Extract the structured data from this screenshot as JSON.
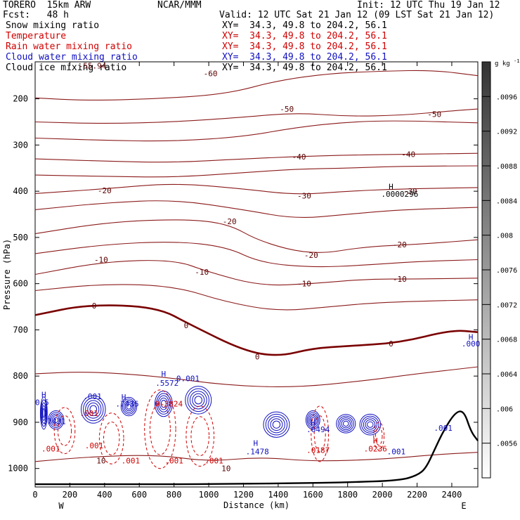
{
  "header": {
    "left_line1": "TORERO  15km ARW",
    "center_line1": "NCAR/MMM",
    "right_line1": "Init: 12 UTC Thu 19 Jan 12",
    "left_line2": "Fcst:   48 h",
    "right_line2": "Valid: 12 UTC Sat 21 Jan 12 (09 LST Sat 21 Jan 12)"
  },
  "fields": [
    {
      "name": "Snow mixing ratio",
      "xy": "XY=  34.3, 49.8 to 204.2, 56.1",
      "color": "#000000"
    },
    {
      "name": "Temperature",
      "xy": "XY=  34.3, 49.8 to 204.2, 56.1",
      "color": "#d00000"
    },
    {
      "name": "Rain water mixing ratio",
      "xy": "XY=  34.3, 49.8 to 204.2, 56.1",
      "color": "#d00000"
    },
    {
      "name": "Cloud water mixing ratio",
      "xy": "XY=  34.3, 49.8 to 204.2, 56.1",
      "color": "#1010c0"
    },
    {
      "name": "Cloud ice mixing ratio",
      "xy": "XY=  34.3, 49.8 to 204.2, 56.1",
      "color": "#000000"
    }
  ],
  "chart_data": {
    "type": "contour-cross-section",
    "xlabel": "Distance (km)",
    "ylabel": "Pressure (hPa)",
    "x_ticks": [
      "0",
      "200",
      "400",
      "600",
      "800",
      "1000",
      "1200",
      "1400",
      "1600",
      "1800",
      "2000",
      "2200",
      "2400"
    ],
    "y_ticks": [
      "200",
      "300",
      "400",
      "500",
      "600",
      "700",
      "800",
      "900",
      "1000"
    ],
    "xlim": [
      0,
      2550
    ],
    "ylim": [
      1040,
      120
    ],
    "endpoints": [
      "W",
      "E"
    ],
    "colorbar": {
      "unit": "g kg",
      "unit_exp": "-1",
      "labels": [
        ".0096",
        ".0092",
        ".0088",
        ".0084",
        ".008",
        ".0076",
        ".0072",
        ".0068",
        ".0064",
        ".006",
        ".0056"
      ]
    },
    "temperature_labels": [
      {
        "text": "-60",
        "x": 1010,
        "p": 145
      },
      {
        "text": "-50",
        "x": 1450,
        "p": 222
      },
      {
        "text": "-50",
        "x": 2300,
        "p": 233
      },
      {
        "text": "-40",
        "x": 1520,
        "p": 325
      },
      {
        "text": "-40",
        "x": 2150,
        "p": 320
      },
      {
        "text": "-30",
        "x": 1550,
        "p": 410
      },
      {
        "text": "-30",
        "x": 2160,
        "p": 400
      },
      {
        "text": "-20",
        "x": 400,
        "p": 398
      },
      {
        "text": "-20",
        "x": 1120,
        "p": 465
      },
      {
        "text": "-20",
        "x": 1590,
        "p": 538
      },
      {
        "text": "-20",
        "x": 2100,
        "p": 515
      },
      {
        "text": "-10",
        "x": 380,
        "p": 548
      },
      {
        "text": "-10",
        "x": 960,
        "p": 575
      },
      {
        "text": "-10",
        "x": 1550,
        "p": 600
      },
      {
        "text": "-10",
        "x": 2100,
        "p": 590
      },
      {
        "text": "0",
        "x": 340,
        "p": 648
      },
      {
        "text": "0",
        "x": 870,
        "p": 690
      },
      {
        "text": "0",
        "x": 1280,
        "p": 758
      },
      {
        "text": "0",
        "x": 2050,
        "p": 730
      },
      {
        "text": "10",
        "x": 380,
        "p": 983
      },
      {
        "text": "10",
        "x": 1100,
        "p": 1000
      },
      {
        "text": "-55.94",
        "x": 330,
        "p": 128
      }
    ],
    "mixing_labels": [
      {
        "text": "H",
        "x": 2050,
        "p": 390,
        "color": "#000000"
      },
      {
        "text": ".0000296",
        "x": 2100,
        "p": 406,
        "color": "#000000"
      },
      {
        "text": "H",
        "x": 50,
        "p": 840,
        "color": "#1010c0"
      },
      {
        "text": "0.5",
        "x": 40,
        "p": 857,
        "color": "#1010c0"
      },
      {
        "text": ".7431",
        "x": 110,
        "p": 898,
        "color": "#1010c0"
      },
      {
        "text": ".001",
        "x": 330,
        "p": 844,
        "color": "#1010c0"
      },
      {
        "text": ".001",
        "x": 310,
        "p": 880,
        "color": "#d00000"
      },
      {
        "text": "H",
        "x": 510,
        "p": 845,
        "color": "#1010c0"
      },
      {
        "text": ".7436",
        "x": 530,
        "p": 860,
        "color": "#1010c0"
      },
      {
        "text": "H",
        "x": 740,
        "p": 795,
        "color": "#1010c0"
      },
      {
        "text": ".5572",
        "x": 760,
        "p": 815,
        "color": "#1010c0"
      },
      {
        "text": "0.001",
        "x": 880,
        "p": 805,
        "color": "#1010c0"
      },
      {
        "text": "0.3824",
        "x": 770,
        "p": 860,
        "color": "#d00000"
      },
      {
        "text": ".001",
        "x": 90,
        "p": 957,
        "color": "#d00000"
      },
      {
        "text": ".001",
        "x": 340,
        "p": 950,
        "color": "#d00000"
      },
      {
        "text": ".001",
        "x": 550,
        "p": 983,
        "color": "#d00000"
      },
      {
        "text": ".001",
        "x": 800,
        "p": 983,
        "color": "#d00000"
      },
      {
        "text": ".001",
        "x": 1030,
        "p": 983,
        "color": "#d00000"
      },
      {
        "text": "H",
        "x": 1270,
        "p": 945,
        "color": "#1010c0"
      },
      {
        "text": ".1478",
        "x": 1280,
        "p": 963,
        "color": "#1010c0"
      },
      {
        "text": "H",
        "x": 1600,
        "p": 900,
        "color": "#1010c0"
      },
      {
        "text": ".6494",
        "x": 1630,
        "p": 915,
        "color": "#1010c0"
      },
      {
        "text": ".0187",
        "x": 1630,
        "p": 960,
        "color": "#d00000"
      },
      {
        "text": "H",
        "x": 1960,
        "p": 940,
        "color": "#d00000"
      },
      {
        "text": ".0236",
        "x": 1960,
        "p": 957,
        "color": "#d00000"
      },
      {
        "text": ".001",
        "x": 2080,
        "p": 963,
        "color": "#1010c0"
      },
      {
        "text": ".001",
        "x": 2350,
        "p": 912,
        "color": "#1010c0"
      },
      {
        "text": "H",
        "x": 2510,
        "p": 715,
        "color": "#1010c0"
      },
      {
        "text": ".000",
        "x": 2510,
        "p": 730,
        "color": "#1010c0"
      }
    ],
    "temperature_contours": [
      {
        "level": "-60",
        "points": [
          [
            0,
            198
          ],
          [
            300,
            204
          ],
          [
            700,
            200
          ],
          [
            1100,
            190
          ],
          [
            1400,
            160
          ],
          [
            1700,
            145
          ],
          [
            2000,
            140
          ],
          [
            2300,
            138
          ],
          [
            2550,
            150
          ]
        ]
      },
      {
        "level": "-50",
        "points": [
          [
            0,
            250
          ],
          [
            400,
            254
          ],
          [
            800,
            250
          ],
          [
            1200,
            240
          ],
          [
            1500,
            230
          ],
          [
            1800,
            238
          ],
          [
            2100,
            236
          ],
          [
            2400,
            226
          ],
          [
            2550,
            222
          ]
        ]
      },
      {
        "level": "-45",
        "points": [
          [
            0,
            285
          ],
          [
            400,
            290
          ],
          [
            800,
            292
          ],
          [
            1200,
            282
          ],
          [
            1500,
            262
          ],
          [
            1800,
            250
          ],
          [
            2100,
            247
          ],
          [
            2550,
            252
          ]
        ]
      },
      {
        "level": "-40",
        "points": [
          [
            0,
            330
          ],
          [
            400,
            335
          ],
          [
            800,
            338
          ],
          [
            1200,
            330
          ],
          [
            1500,
            325
          ],
          [
            1800,
            322
          ],
          [
            2100,
            320
          ],
          [
            2550,
            318
          ]
        ]
      },
      {
        "level": "-35",
        "points": [
          [
            0,
            365
          ],
          [
            400,
            368
          ],
          [
            800,
            370
          ],
          [
            1200,
            360
          ],
          [
            1500,
            352
          ],
          [
            1800,
            350
          ],
          [
            2100,
            346
          ],
          [
            2550,
            345
          ]
        ]
      },
      {
        "level": "-30",
        "points": [
          [
            0,
            405
          ],
          [
            400,
            395
          ],
          [
            800,
            382
          ],
          [
            1200,
            395
          ],
          [
            1500,
            408
          ],
          [
            1800,
            400
          ],
          [
            2100,
            395
          ],
          [
            2550,
            392
          ]
        ]
      },
      {
        "level": "-25",
        "points": [
          [
            0,
            440
          ],
          [
            400,
            425
          ],
          [
            800,
            418
          ],
          [
            1200,
            440
          ],
          [
            1500,
            460
          ],
          [
            1800,
            450
          ],
          [
            2100,
            440
          ],
          [
            2550,
            435
          ]
        ]
      },
      {
        "level": "-20",
        "points": [
          [
            0,
            492
          ],
          [
            400,
            468
          ],
          [
            800,
            460
          ],
          [
            1100,
            468
          ],
          [
            1300,
            510
          ],
          [
            1600,
            538
          ],
          [
            1900,
            520
          ],
          [
            2200,
            515
          ],
          [
            2550,
            505
          ]
        ]
      },
      {
        "level": "-15",
        "points": [
          [
            0,
            535
          ],
          [
            400,
            515
          ],
          [
            800,
            508
          ],
          [
            1100,
            520
          ],
          [
            1300,
            555
          ],
          [
            1600,
            565
          ],
          [
            1900,
            560
          ],
          [
            2200,
            552
          ],
          [
            2550,
            548
          ]
        ]
      },
      {
        "level": "-10",
        "points": [
          [
            0,
            580
          ],
          [
            400,
            552
          ],
          [
            800,
            548
          ],
          [
            1000,
            575
          ],
          [
            1300,
            605
          ],
          [
            1600,
            600
          ],
          [
            1900,
            590
          ],
          [
            2200,
            590
          ],
          [
            2550,
            588
          ]
        ]
      },
      {
        "level": "-5",
        "points": [
          [
            0,
            615
          ],
          [
            400,
            600
          ],
          [
            800,
            605
          ],
          [
            1100,
            640
          ],
          [
            1400,
            660
          ],
          [
            1700,
            650
          ],
          [
            2000,
            640
          ],
          [
            2550,
            635
          ]
        ]
      },
      {
        "level": "0",
        "points": [
          [
            0,
            668
          ],
          [
            300,
            645
          ],
          [
            700,
            650
          ],
          [
            900,
            690
          ],
          [
            1200,
            745
          ],
          [
            1400,
            758
          ],
          [
            1600,
            740
          ],
          [
            1800,
            735
          ],
          [
            2100,
            728
          ],
          [
            2400,
            700
          ],
          [
            2550,
            705
          ]
        ]
      },
      {
        "level": "5",
        "points": [
          [
            0,
            795
          ],
          [
            300,
            790
          ],
          [
            700,
            800
          ],
          [
            1100,
            820
          ],
          [
            1500,
            825
          ],
          [
            1900,
            810
          ],
          [
            2200,
            795
          ],
          [
            2550,
            780
          ]
        ]
      },
      {
        "level": "10",
        "points": [
          [
            0,
            985
          ],
          [
            300,
            975
          ],
          [
            700,
            970
          ],
          [
            1000,
            985
          ],
          [
            1300,
            975
          ],
          [
            1600,
            985
          ],
          [
            2000,
            980
          ],
          [
            2300,
            970
          ],
          [
            2550,
            965
          ]
        ]
      }
    ],
    "terrain_pressure": [
      [
        0,
        1034
      ],
      [
        300,
        1034
      ],
      [
        600,
        1034
      ],
      [
        900,
        1034
      ],
      [
        1200,
        1033
      ],
      [
        1500,
        1032
      ],
      [
        1800,
        1030
      ],
      [
        2100,
        1026
      ],
      [
        2200,
        1015
      ],
      [
        2250,
        1000
      ],
      [
        2300,
        960
      ],
      [
        2350,
        920
      ],
      [
        2420,
        878
      ],
      [
        2470,
        875
      ],
      [
        2510,
        920
      ],
      [
        2550,
        940
      ]
    ],
    "cloud_water_cells": [
      {
        "x": 50,
        "p": 880,
        "w": 40,
        "h": 70
      },
      {
        "x": 120,
        "p": 895,
        "w": 90,
        "h": 40
      },
      {
        "x": 335,
        "p": 872,
        "w": 140,
        "h": 60
      },
      {
        "x": 540,
        "p": 866,
        "w": 90,
        "h": 40
      },
      {
        "x": 740,
        "p": 860,
        "w": 100,
        "h": 55
      },
      {
        "x": 940,
        "p": 852,
        "w": 150,
        "h": 60
      },
      {
        "x": 1390,
        "p": 905,
        "w": 150,
        "h": 55
      },
      {
        "x": 1600,
        "p": 895,
        "w": 80,
        "h": 40
      },
      {
        "x": 1790,
        "p": 903,
        "w": 110,
        "h": 40
      },
      {
        "x": 1930,
        "p": 905,
        "w": 120,
        "h": 45
      }
    ],
    "rain_cells": [
      {
        "x": 170,
        "p": 918,
        "w": 120,
        "h": 100
      },
      {
        "x": 440,
        "p": 935,
        "w": 140,
        "h": 110
      },
      {
        "x": 720,
        "p": 915,
        "w": 180,
        "h": 170
      },
      {
        "x": 950,
        "p": 930,
        "w": 160,
        "h": 130
      },
      {
        "x": 1640,
        "p": 925,
        "w": 100,
        "h": 120
      },
      {
        "x": 1980,
        "p": 930,
        "w": 60,
        "h": 60
      }
    ]
  }
}
